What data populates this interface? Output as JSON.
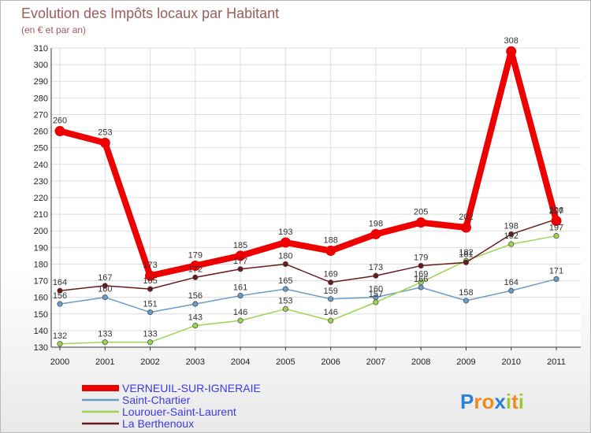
{
  "title": "Evolution des Impôts locaux par Habitant",
  "subtitle": "(en € et par an)",
  "logo": {
    "letters": [
      "P",
      "r",
      "o",
      "x",
      "i",
      "t",
      "i"
    ],
    "colors": [
      "#2f7fd6",
      "#f08a1e",
      "#f08a1e",
      "#2f7fd6",
      "#9bc93b",
      "#f08a1e",
      "#9bc93b"
    ]
  },
  "chart_data": {
    "type": "line",
    "title": "Evolution des Impôts locaux par Habitant",
    "subtitle": "(en € et par an)",
    "x": [
      "2000",
      "2001",
      "2002",
      "2003",
      "2004",
      "2005",
      "2006",
      "2007",
      "2008",
      "2009",
      "2010",
      "2011"
    ],
    "ylim": [
      130,
      310
    ],
    "yticks": [
      "130",
      "140",
      "150",
      "160",
      "170",
      "180",
      "190",
      "200",
      "210",
      "220",
      "230",
      "240",
      "250",
      "260",
      "270",
      "280",
      "290",
      "300",
      "310"
    ],
    "grid": true,
    "legend_position": "bottom-left",
    "series": [
      {
        "name": "VERNEUIL-SUR-IGNERAIE",
        "color": "#ee0000",
        "values": [
          260,
          253,
          173,
          179,
          185,
          193,
          188,
          198,
          205,
          202,
          308,
          206
        ],
        "labels": [
          "260",
          "253",
          "173",
          "179",
          "185",
          "193",
          "188",
          "198",
          "205",
          "202",
          "308",
          "206"
        ]
      },
      {
        "name": "Saint-Chartier",
        "color": "#6a9cc9",
        "values": [
          156,
          160,
          151,
          156,
          161,
          165,
          159,
          160,
          166,
          158,
          164,
          171
        ],
        "labels": [
          "156",
          "160",
          "151",
          "156",
          "161",
          "165",
          "159",
          "160",
          "166",
          "158",
          "164",
          "171"
        ]
      },
      {
        "name": "Lourouer-Saint-Laurent",
        "color": "#9bd653",
        "values": [
          132,
          133,
          133,
          143,
          146,
          153,
          146,
          157,
          169,
          182,
          192,
          197
        ],
        "labels": [
          "132",
          "133",
          "133",
          "143",
          "146",
          "153",
          "146",
          "157",
          "169",
          "182",
          "192",
          "197"
        ]
      },
      {
        "name": "La Berthenoux",
        "color": "#6b1a1a",
        "values": [
          164,
          167,
          165,
          172,
          177,
          180,
          169,
          173,
          179,
          181,
          198,
          207
        ],
        "labels": [
          "164",
          "167",
          "165",
          "172",
          "177",
          "180",
          "169",
          "173",
          "179",
          "181",
          "198",
          "207"
        ]
      }
    ]
  }
}
